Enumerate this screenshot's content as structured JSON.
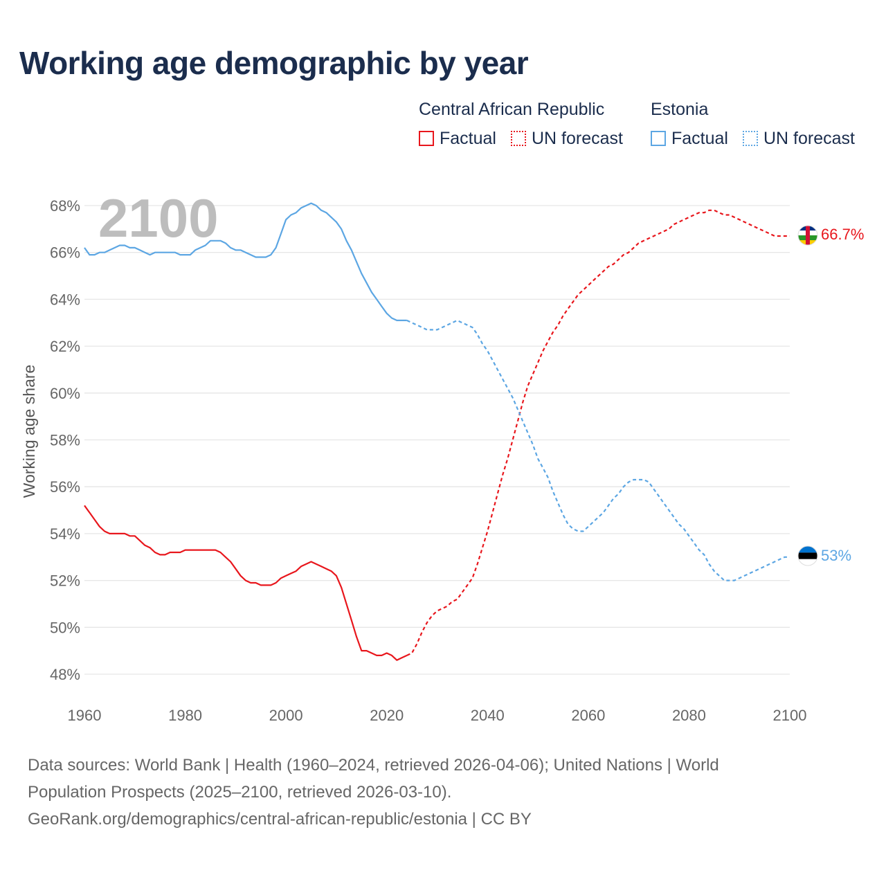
{
  "title": "Working age demographic by year",
  "legend": {
    "groups": [
      {
        "name": "Central African Republic",
        "color": "#e8161c",
        "items": [
          {
            "label": "Factual",
            "style": "solid"
          },
          {
            "label": "UN forecast",
            "style": "dotted"
          }
        ]
      },
      {
        "name": "Estonia",
        "color": "#5ca6e3",
        "items": [
          {
            "label": "Factual",
            "style": "solid"
          },
          {
            "label": "UN forecast",
            "style": "dotted"
          }
        ]
      }
    ]
  },
  "footer": {
    "line1": "Data sources: World Bank | Health (1960–2024, retrieved 2026-04-06); United Nations | World",
    "line2": "Population Prospects (2025–2100, retrieved 2026-03-10).",
    "line3": "GeoRank.org/demographics/central-african-republic/estonia | CC BY"
  },
  "chart_data": {
    "type": "line",
    "title": "Working age demographic by year",
    "xlabel": "",
    "ylabel": "Working age share",
    "xlim": [
      1960,
      2100
    ],
    "ylim": [
      47,
      69
    ],
    "x_ticks": [
      1960,
      1980,
      2000,
      2020,
      2040,
      2060,
      2080,
      2100
    ],
    "y_ticks": [
      48,
      50,
      52,
      54,
      56,
      58,
      60,
      62,
      64,
      66,
      68
    ],
    "y_tick_suffix": "%",
    "grid": true,
    "year_display": "2100",
    "series": [
      {
        "name": "Central African Republic",
        "color": "#e8161c",
        "end_label": "66.7%",
        "factual": {
          "x": [
            1960,
            1961,
            1962,
            1963,
            1964,
            1965,
            1966,
            1967,
            1968,
            1969,
            1970,
            1971,
            1972,
            1973,
            1974,
            1975,
            1976,
            1977,
            1978,
            1979,
            1980,
            1981,
            1982,
            1983,
            1984,
            1985,
            1986,
            1987,
            1988,
            1989,
            1990,
            1991,
            1992,
            1993,
            1994,
            1995,
            1996,
            1997,
            1998,
            1999,
            2000,
            2001,
            2002,
            2003,
            2004,
            2005,
            2006,
            2007,
            2008,
            2009,
            2010,
            2011,
            2012,
            2013,
            2014,
            2015,
            2016,
            2017,
            2018,
            2019,
            2020,
            2021,
            2022,
            2023,
            2024
          ],
          "y": [
            55.2,
            54.9,
            54.6,
            54.3,
            54.1,
            54.0,
            54.0,
            54.0,
            54.0,
            53.9,
            53.9,
            53.7,
            53.5,
            53.4,
            53.2,
            53.1,
            53.1,
            53.2,
            53.2,
            53.2,
            53.3,
            53.3,
            53.3,
            53.3,
            53.3,
            53.3,
            53.3,
            53.2,
            53.0,
            52.8,
            52.5,
            52.2,
            52.0,
            51.9,
            51.9,
            51.8,
            51.8,
            51.8,
            51.9,
            52.1,
            52.2,
            52.3,
            52.4,
            52.6,
            52.7,
            52.8,
            52.7,
            52.6,
            52.5,
            52.4,
            52.2,
            51.7,
            51.0,
            50.3,
            49.6,
            49.0,
            49.0,
            48.9,
            48.8,
            48.8,
            48.9,
            48.8,
            48.6,
            48.7,
            48.8
          ]
        },
        "forecast": {
          "x": [
            2024,
            2025,
            2026,
            2027,
            2028,
            2029,
            2030,
            2031,
            2032,
            2033,
            2034,
            2035,
            2036,
            2037,
            2038,
            2039,
            2040,
            2041,
            2042,
            2043,
            2044,
            2045,
            2046,
            2047,
            2048,
            2049,
            2050,
            2051,
            2052,
            2053,
            2054,
            2055,
            2056,
            2057,
            2058,
            2059,
            2060,
            2061,
            2062,
            2063,
            2064,
            2065,
            2066,
            2067,
            2068,
            2069,
            2070,
            2071,
            2072,
            2073,
            2074,
            2075,
            2076,
            2077,
            2078,
            2079,
            2080,
            2081,
            2082,
            2083,
            2084,
            2085,
            2086,
            2087,
            2088,
            2089,
            2090,
            2091,
            2092,
            2093,
            2094,
            2095,
            2096,
            2097,
            2098,
            2099,
            2100
          ],
          "y": [
            48.8,
            48.9,
            49.3,
            49.8,
            50.2,
            50.5,
            50.7,
            50.8,
            50.9,
            51.1,
            51.2,
            51.5,
            51.8,
            52.1,
            52.7,
            53.4,
            54.1,
            54.9,
            55.7,
            56.5,
            57.2,
            58.0,
            58.8,
            59.6,
            60.3,
            60.8,
            61.3,
            61.8,
            62.2,
            62.6,
            62.9,
            63.3,
            63.6,
            63.9,
            64.2,
            64.4,
            64.6,
            64.8,
            65.0,
            65.2,
            65.4,
            65.5,
            65.7,
            65.9,
            66.0,
            66.2,
            66.4,
            66.5,
            66.6,
            66.7,
            66.8,
            66.9,
            67.0,
            67.2,
            67.3,
            67.4,
            67.5,
            67.6,
            67.7,
            67.7,
            67.8,
            67.8,
            67.7,
            67.6,
            67.6,
            67.5,
            67.4,
            67.3,
            67.2,
            67.1,
            67.0,
            66.9,
            66.8,
            66.7,
            66.7,
            66.7,
            66.7
          ]
        }
      },
      {
        "name": "Estonia",
        "color": "#5ca6e3",
        "end_label": "53%",
        "factual": {
          "x": [
            1960,
            1961,
            1962,
            1963,
            1964,
            1965,
            1966,
            1967,
            1968,
            1969,
            1970,
            1971,
            1972,
            1973,
            1974,
            1975,
            1976,
            1977,
            1978,
            1979,
            1980,
            1981,
            1982,
            1983,
            1984,
            1985,
            1986,
            1987,
            1988,
            1989,
            1990,
            1991,
            1992,
            1993,
            1994,
            1995,
            1996,
            1997,
            1998,
            1999,
            2000,
            2001,
            2002,
            2003,
            2004,
            2005,
            2006,
            2007,
            2008,
            2009,
            2010,
            2011,
            2012,
            2013,
            2014,
            2015,
            2016,
            2017,
            2018,
            2019,
            2020,
            2021,
            2022,
            2023,
            2024
          ],
          "y": [
            66.2,
            65.9,
            65.9,
            66.0,
            66.0,
            66.1,
            66.2,
            66.3,
            66.3,
            66.2,
            66.2,
            66.1,
            66.0,
            65.9,
            66.0,
            66.0,
            66.0,
            66.0,
            66.0,
            65.9,
            65.9,
            65.9,
            66.1,
            66.2,
            66.3,
            66.5,
            66.5,
            66.5,
            66.4,
            66.2,
            66.1,
            66.1,
            66.0,
            65.9,
            65.8,
            65.8,
            65.8,
            65.9,
            66.2,
            66.8,
            67.4,
            67.6,
            67.7,
            67.9,
            68.0,
            68.1,
            68.0,
            67.8,
            67.7,
            67.5,
            67.3,
            67.0,
            66.5,
            66.1,
            65.6,
            65.1,
            64.7,
            64.3,
            64.0,
            63.7,
            63.4,
            63.2,
            63.1,
            63.1,
            63.1
          ]
        },
        "forecast": {
          "x": [
            2024,
            2025,
            2026,
            2027,
            2028,
            2029,
            2030,
            2031,
            2032,
            2033,
            2034,
            2035,
            2036,
            2037,
            2038,
            2039,
            2040,
            2041,
            2042,
            2043,
            2044,
            2045,
            2046,
            2047,
            2048,
            2049,
            2050,
            2051,
            2052,
            2053,
            2054,
            2055,
            2056,
            2057,
            2058,
            2059,
            2060,
            2061,
            2062,
            2063,
            2064,
            2065,
            2066,
            2067,
            2068,
            2069,
            2070,
            2071,
            2072,
            2073,
            2074,
            2075,
            2076,
            2077,
            2078,
            2079,
            2080,
            2081,
            2082,
            2083,
            2084,
            2085,
            2086,
            2087,
            2088,
            2089,
            2090,
            2091,
            2092,
            2093,
            2094,
            2095,
            2096,
            2097,
            2098,
            2099,
            2100
          ],
          "y": [
            63.1,
            63.0,
            62.9,
            62.8,
            62.7,
            62.7,
            62.7,
            62.8,
            62.9,
            63.0,
            63.1,
            63.0,
            62.9,
            62.8,
            62.5,
            62.1,
            61.8,
            61.4,
            61.0,
            60.6,
            60.2,
            59.8,
            59.3,
            58.8,
            58.3,
            57.8,
            57.2,
            56.8,
            56.4,
            55.8,
            55.3,
            54.8,
            54.4,
            54.2,
            54.1,
            54.1,
            54.3,
            54.5,
            54.7,
            54.9,
            55.2,
            55.5,
            55.7,
            56.0,
            56.2,
            56.3,
            56.3,
            56.3,
            56.2,
            55.9,
            55.6,
            55.3,
            55.0,
            54.7,
            54.4,
            54.2,
            53.9,
            53.6,
            53.3,
            53.1,
            52.7,
            52.4,
            52.2,
            52.0,
            52.0,
            52.0,
            52.1,
            52.2,
            52.3,
            52.4,
            52.5,
            52.6,
            52.7,
            52.8,
            52.9,
            53.0,
            53.0
          ]
        }
      }
    ]
  }
}
